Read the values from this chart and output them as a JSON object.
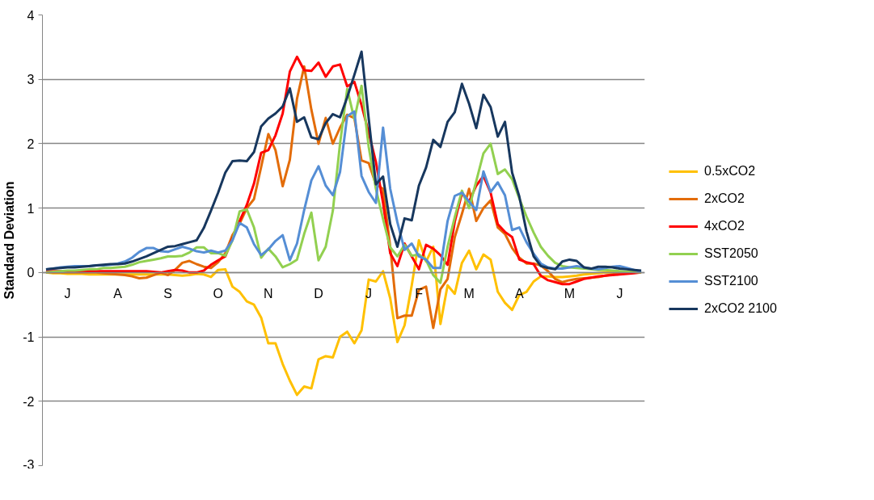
{
  "chart_data": {
    "type": "line",
    "ylabel": "Standard Deviation",
    "ylim": [
      -3,
      4
    ],
    "yticks": [
      -3,
      -2,
      -1,
      0,
      1,
      2,
      3,
      4
    ],
    "categories": [
      null,
      null,
      null,
      "J",
      null,
      null,
      null,
      null,
      null,
      null,
      "A",
      null,
      null,
      null,
      null,
      null,
      null,
      "S",
      null,
      null,
      null,
      null,
      null,
      null,
      "O",
      null,
      null,
      null,
      null,
      null,
      null,
      "N",
      null,
      null,
      null,
      null,
      null,
      null,
      "D",
      null,
      null,
      null,
      null,
      null,
      null,
      "J",
      null,
      null,
      null,
      null,
      null,
      null,
      "F",
      null,
      null,
      null,
      null,
      null,
      null,
      "M",
      null,
      null,
      null,
      null,
      null,
      null,
      "A",
      null,
      null,
      null,
      null,
      null,
      null,
      "M",
      null,
      null,
      null,
      null,
      null,
      null,
      "J",
      null,
      null,
      null
    ],
    "grid": "y",
    "legend": "right",
    "marker": "none",
    "line_style": "solid",
    "series": [
      {
        "name": "0.5xCO2",
        "color": "#ffc000",
        "values": [
          0,
          -0.01,
          -0.01,
          -0.02,
          -0.02,
          -0.02,
          -0.03,
          -0.03,
          -0.03,
          -0.03,
          -0.03,
          -0.03,
          -0.03,
          -0.03,
          -0.03,
          -0.03,
          -0.03,
          -0.03,
          -0.04,
          -0.05,
          -0.04,
          -0.02,
          -0.03,
          -0.07,
          0.04,
          0.05,
          -0.22,
          -0.3,
          -0.45,
          -0.5,
          -0.7,
          -1.1,
          -1.1,
          -1.42,
          -1.68,
          -1.9,
          -1.77,
          -1.8,
          -1.35,
          -1.3,
          -1.32,
          -1.0,
          -0.92,
          -1.1,
          -0.9,
          -0.11,
          -0.14,
          0.02,
          -0.4,
          -1.08,
          -0.82,
          -0.2,
          0.5,
          0.17,
          0.4,
          -0.8,
          -0.2,
          -0.33,
          0.15,
          0.34,
          0.05,
          0.28,
          0.2,
          -0.3,
          -0.47,
          -0.58,
          -0.35,
          -0.3,
          -0.14,
          -0.06,
          -0.06,
          -0.07,
          -0.07,
          -0.06,
          -0.05,
          -0.03,
          -0.02,
          -0.01,
          0,
          0,
          0,
          null,
          null,
          null
        ]
      },
      {
        "name": "2xCO2",
        "color": "#e36c09",
        "values": [
          0,
          0,
          0,
          0,
          0,
          0,
          0,
          0,
          -0.01,
          -0.02,
          -0.03,
          -0.04,
          -0.06,
          -0.09,
          -0.08,
          -0.04,
          0,
          -0.04,
          0.04,
          0.15,
          0.18,
          0.13,
          0.09,
          0.07,
          0.16,
          0.3,
          0.58,
          0.76,
          1.0,
          1.14,
          1.64,
          2.15,
          1.9,
          1.34,
          1.75,
          2.7,
          3.2,
          2.53,
          2.0,
          2.4,
          2.0,
          2.25,
          2.45,
          2.4,
          1.74,
          1.7,
          1.37,
          1.3,
          0.4,
          -0.71,
          -0.67,
          -0.67,
          -0.27,
          -0.22,
          -0.86,
          -0.26,
          -0.1,
          0.55,
          0.91,
          1.3,
          0.8,
          1.0,
          1.12,
          0.7,
          0.6,
          0.38,
          0.23,
          0.14,
          0.14,
          0.11,
          0.02,
          -0.1,
          -0.15,
          -0.12,
          -0.1,
          -0.09,
          -0.08,
          -0.07,
          -0.05,
          -0.03,
          -0.01,
          0,
          null,
          null
        ]
      },
      {
        "name": "4xCO2",
        "color": "#ff0000",
        "values": [
          0.02,
          0.02,
          0.02,
          0.02,
          0.02,
          0.02,
          0.02,
          0.02,
          0.02,
          0.02,
          0.02,
          0.02,
          0.02,
          0.02,
          0.02,
          0.01,
          0,
          0.02,
          0.04,
          0.03,
          0,
          0,
          0.03,
          0.12,
          0.19,
          0.25,
          0.53,
          0.8,
          1.05,
          1.38,
          1.86,
          1.9,
          2.13,
          2.47,
          3.12,
          3.35,
          3.14,
          3.13,
          3.26,
          3.04,
          3.2,
          3.23,
          2.89,
          2.96,
          2.6,
          2.17,
          1.72,
          1.08,
          0.3,
          0.1,
          0.45,
          0.25,
          0.05,
          0.43,
          0.37,
          0.27,
          0.12,
          0.79,
          1.23,
          1.1,
          1.35,
          1.5,
          1.24,
          0.75,
          0.63,
          0.55,
          0.2,
          0.16,
          0.13,
          -0.05,
          -0.12,
          -0.15,
          -0.18,
          -0.18,
          -0.14,
          -0.1,
          -0.08,
          -0.06,
          -0.05,
          -0.04,
          -0.03,
          -0.02,
          -0.01,
          0
        ]
      },
      {
        "name": "SST2050",
        "color": "#92d050",
        "values": [
          0,
          0.01,
          0.02,
          0.03,
          0.03,
          0.04,
          0.05,
          0.05,
          0.07,
          0.07,
          0.08,
          0.09,
          0.12,
          0.16,
          0.18,
          0.2,
          0.22,
          0.25,
          0.25,
          0.26,
          0.31,
          0.39,
          0.39,
          0.3,
          0.3,
          0.26,
          0.5,
          0.95,
          0.98,
          0.7,
          0.23,
          0.37,
          0.25,
          0.08,
          0.13,
          0.2,
          0.6,
          0.93,
          0.19,
          0.4,
          0.96,
          2.0,
          2.85,
          2.38,
          2.9,
          1.95,
          1.3,
          0.83,
          0.39,
          0.25,
          0.43,
          0.26,
          0.28,
          0.19,
          -0.04,
          -0.16,
          0.4,
          0.86,
          1.27,
          1.0,
          1.42,
          1.85,
          2.0,
          1.53,
          1.6,
          1.45,
          1.15,
          0.87,
          0.62,
          0.4,
          0.26,
          0.15,
          0.1,
          0.08,
          0.07,
          0.06,
          0.05,
          0.04,
          0.04,
          0.03,
          0.02,
          0.01,
          0.01,
          0
        ]
      },
      {
        "name": "SST2100",
        "color": "#558ed5",
        "values": [
          0.05,
          0.06,
          0.08,
          0.09,
          0.1,
          0.1,
          0.1,
          0.11,
          0.11,
          0.12,
          0.14,
          0.17,
          0.23,
          0.32,
          0.38,
          0.38,
          0.33,
          0.32,
          0.36,
          0.4,
          0.37,
          0.33,
          0.31,
          0.34,
          0.31,
          0.34,
          0.5,
          0.77,
          0.7,
          0.44,
          0.27,
          0.36,
          0.49,
          0.58,
          0.19,
          0.45,
          0.97,
          1.43,
          1.65,
          1.35,
          1.2,
          1.56,
          2.43,
          2.5,
          1.5,
          1.25,
          1.08,
          2.25,
          1.3,
          0.78,
          0.35,
          0.45,
          0.25,
          0.2,
          0.07,
          0.07,
          0.8,
          1.19,
          1.24,
          1.1,
          0.97,
          1.57,
          1.25,
          1.4,
          1.2,
          0.66,
          0.7,
          0.47,
          0.29,
          0.14,
          0.08,
          0.06,
          0.06,
          0.08,
          0.1,
          0.08,
          0.06,
          0.05,
          0.07,
          0.09,
          0.1,
          0.07,
          0.04,
          0.01
        ]
      },
      {
        "name": "2xCO2 2100",
        "color": "#17375e",
        "values": [
          0.05,
          0.06,
          0.07,
          0.08,
          0.08,
          0.09,
          0.1,
          0.11,
          0.12,
          0.13,
          0.13,
          0.14,
          0.17,
          0.21,
          0.25,
          0.3,
          0.35,
          0.4,
          0.41,
          0.44,
          0.47,
          0.5,
          0.69,
          0.96,
          1.24,
          1.55,
          1.73,
          1.74,
          1.73,
          1.87,
          2.27,
          2.39,
          2.47,
          2.58,
          2.86,
          2.34,
          2.41,
          2.1,
          2.07,
          2.32,
          2.46,
          2.41,
          2.72,
          3.07,
          3.43,
          2.39,
          1.37,
          1.49,
          0.75,
          0.4,
          0.84,
          0.81,
          1.35,
          1.63,
          2.06,
          1.95,
          2.34,
          2.49,
          2.93,
          2.62,
          2.24,
          2.76,
          2.57,
          2.11,
          2.34,
          1.55,
          1.18,
          0.64,
          0.25,
          0.1,
          0.07,
          0.05,
          0.17,
          0.2,
          0.18,
          0.08,
          0.06,
          0.09,
          0.09,
          0.08,
          0.06,
          0.05,
          0.04,
          0.03
        ]
      }
    ]
  }
}
